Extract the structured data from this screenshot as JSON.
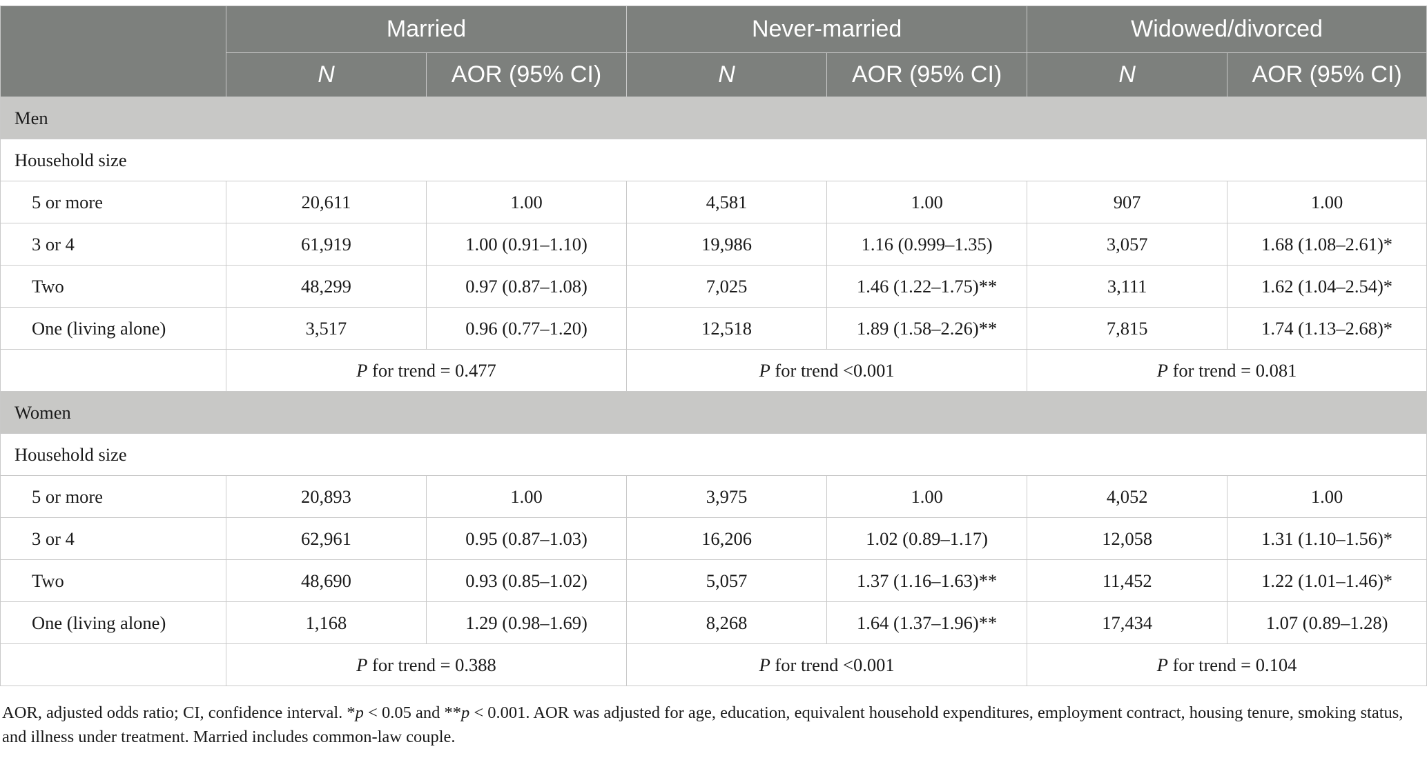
{
  "header": {
    "groups": [
      "Married",
      "Never-married",
      "Widowed/divorced"
    ],
    "sub": [
      "N",
      "AOR (95% CI)",
      "N",
      "AOR (95% CI)",
      "N",
      "AOR (95% CI)"
    ]
  },
  "sections": [
    {
      "title": "Men",
      "subtitle": "Household size",
      "rows": [
        {
          "label": "5 or more",
          "cells": [
            "20,611",
            "1.00",
            "4,581",
            "1.00",
            "907",
            "1.00"
          ]
        },
        {
          "label": "3 or 4",
          "cells": [
            "61,919",
            "1.00 (0.91–1.10)",
            "19,986",
            "1.16 (0.999–1.35)",
            "3,057",
            "1.68 (1.08–2.61)*"
          ]
        },
        {
          "label": "Two",
          "cells": [
            "48,299",
            "0.97 (0.87–1.08)",
            "7,025",
            "1.46 (1.22–1.75)**",
            "3,111",
            "1.62 (1.04–2.54)*"
          ]
        },
        {
          "label": "One (living alone)",
          "cells": [
            "3,517",
            "0.96 (0.77–1.20)",
            "12,518",
            "1.89 (1.58–2.26)**",
            "7,815",
            "1.74 (1.13–2.68)*"
          ]
        }
      ],
      "trend": [
        {
          "p": "P",
          "text": " for trend = 0.477"
        },
        {
          "p": "P",
          "text": " for trend <0.001"
        },
        {
          "p": "P",
          "text": " for trend = 0.081"
        }
      ]
    },
    {
      "title": "Women",
      "subtitle": "Household size",
      "rows": [
        {
          "label": "5 or more",
          "cells": [
            "20,893",
            "1.00",
            "3,975",
            "1.00",
            "4,052",
            "1.00"
          ]
        },
        {
          "label": "3 or 4",
          "cells": [
            "62,961",
            "0.95 (0.87–1.03)",
            "16,206",
            "1.02 (0.89–1.17)",
            "12,058",
            "1.31 (1.10–1.56)*"
          ]
        },
        {
          "label": "Two",
          "cells": [
            "48,690",
            "0.93 (0.85–1.02)",
            "5,057",
            "1.37 (1.16–1.63)**",
            "11,452",
            "1.22 (1.01–1.46)*"
          ]
        },
        {
          "label": "One (living alone)",
          "cells": [
            "1,168",
            "1.29 (0.98–1.69)",
            "8,268",
            "1.64 (1.37–1.96)**",
            "17,434",
            "1.07 (0.89–1.28)"
          ]
        }
      ],
      "trend": [
        {
          "p": "P",
          "text": " for trend = 0.388"
        },
        {
          "p": "P",
          "text": " for trend <0.001"
        },
        {
          "p": "P",
          "text": " for trend = 0.104"
        }
      ]
    }
  ],
  "footnote": {
    "part1": "AOR, adjusted odds ratio; CI, confidence interval. *",
    "p1": "p",
    "part2": " < 0.05 and **",
    "p2": "p",
    "part3": " < 0.001. AOR was adjusted for age, education, equivalent household expenditures, employment contract, housing tenure, smoking status, and illness under treatment. Married includes common-law couple."
  }
}
